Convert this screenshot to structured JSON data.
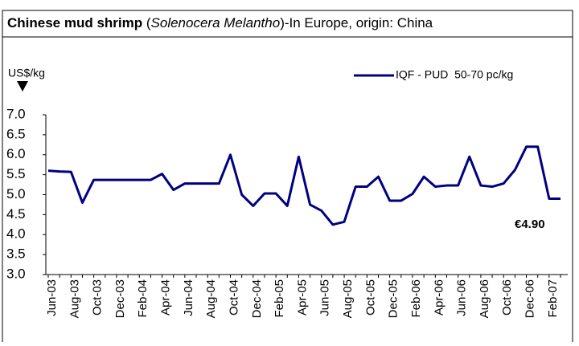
{
  "chart_data": {
    "type": "line",
    "title_parts": [
      "Chinese mud shrimp",
      " (",
      "Solenocera Melantho",
      ")-In Europe, origin: China"
    ],
    "y_axis_label": "US$/kg",
    "annotation": "€4.90",
    "categories": [
      "Jun-03",
      null,
      "Aug-03",
      null,
      "Oct-03",
      null,
      "Dec-03",
      null,
      "Feb-04",
      null,
      "Apr-04",
      null,
      "Jun-04",
      null,
      "Aug-04",
      null,
      "Oct-04",
      null,
      "Dec-04",
      null,
      "Feb-05",
      null,
      "Apr-05",
      null,
      "Jun-05",
      null,
      "Aug-05",
      null,
      "Oct-05",
      null,
      "Dec-05",
      null,
      "Feb-06",
      null,
      "Apr-06",
      null,
      "Jun-06",
      null,
      "Aug-06",
      null,
      "Oct-06",
      null,
      "Dec-06",
      null,
      "Feb-07",
      null
    ],
    "series": [
      {
        "name": "IQF - PUD  50-70 pc/kg",
        "color": "#000080",
        "values": [
          5.6,
          5.58,
          5.57,
          4.8,
          5.37,
          5.37,
          5.37,
          5.37,
          5.37,
          5.37,
          5.52,
          5.12,
          5.28,
          5.28,
          5.28,
          5.28,
          6.0,
          5.0,
          4.72,
          5.03,
          5.03,
          4.72,
          5.95,
          4.75,
          4.6,
          4.25,
          4.32,
          5.2,
          5.2,
          5.45,
          4.85,
          4.85,
          5.02,
          5.45,
          5.2,
          5.23,
          5.23,
          5.95,
          5.23,
          5.2,
          5.28,
          5.62,
          6.2,
          6.2,
          4.9,
          4.9
        ]
      }
    ],
    "ylim": [
      3,
      7
    ],
    "yticks": [
      {
        "value": 3,
        "label": "3.0"
      },
      3.5,
      {
        "value": 4,
        "label": "4.0"
      },
      4.5,
      {
        "value": 5,
        "label": "5.0"
      },
      5.5,
      {
        "value": 6,
        "label": "6.0"
      },
      6.5,
      {
        "value": 7,
        "label": "7.0"
      }
    ],
    "grid": false
  }
}
